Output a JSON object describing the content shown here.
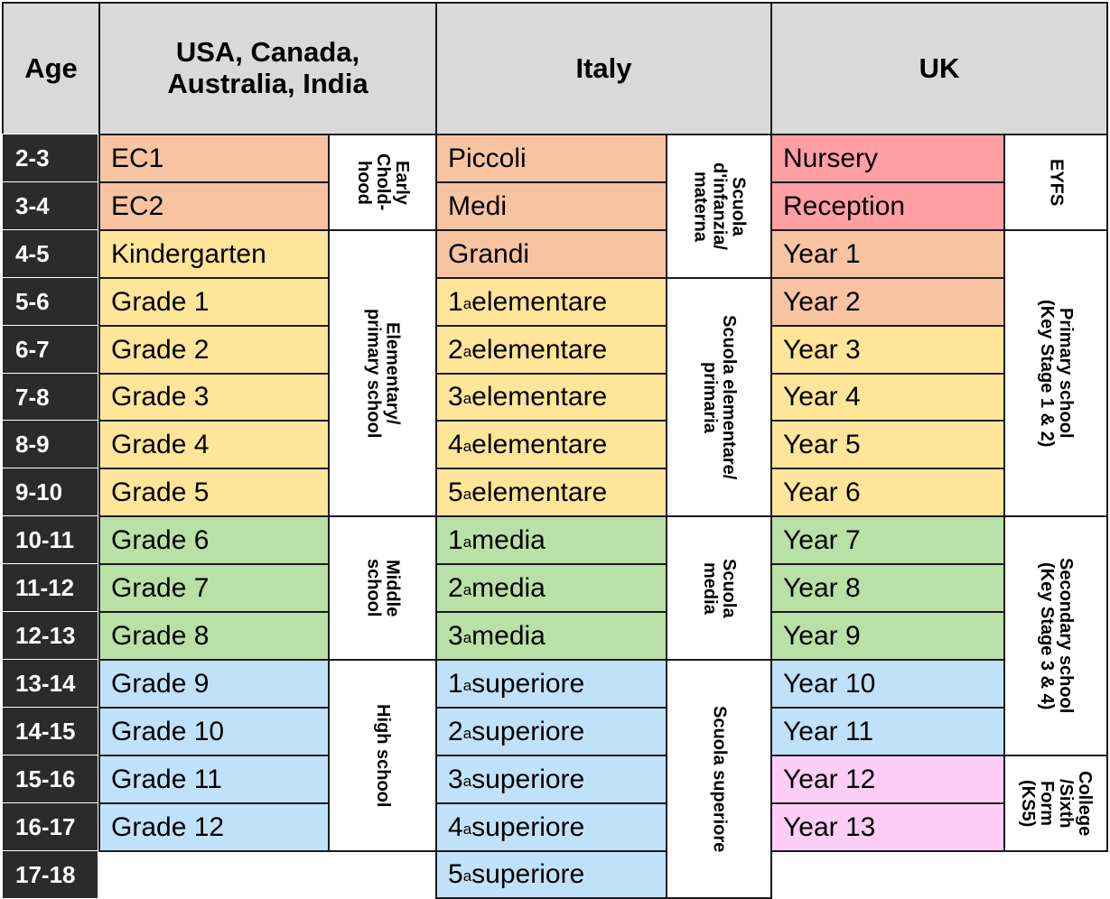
{
  "headers": {
    "age": "Age",
    "usa": "USA, Canada, Australia, India",
    "italy": "Italy",
    "uk": "UK"
  },
  "colors": {
    "early": "#f7c3a1",
    "primary": "#ffe599",
    "middle": "#b9e0a6",
    "high": "#c0e2f9",
    "eyfs": "#ff9fa4",
    "sixth_form": "#fccdf7",
    "header": "#d9d9d9",
    "age_column": "#2b2b2b"
  },
  "ages": [
    "2-3",
    "3-4",
    "4-5",
    "5-6",
    "6-7",
    "7-8",
    "8-9",
    "9-10",
    "10-11",
    "11-12",
    "12-13",
    "13-14",
    "14-15",
    "15-16",
    "16-17",
    "17-18"
  ],
  "usa": {
    "grades": [
      "EC1",
      "EC2",
      "Kindergarten",
      "Grade 1",
      "Grade 2",
      "Grade 3",
      "Grade 4",
      "Grade 5",
      "Grade 6",
      "Grade 7",
      "Grade 8",
      "Grade 9",
      "Grade 10",
      "Grade 11",
      "Grade 12"
    ],
    "groups": [
      "Early\nChold-\nhood",
      "Elementary/\nprimary school",
      "Middle\nschool",
      "High school"
    ]
  },
  "italy": {
    "grades": [
      "Piccoli",
      "Medi",
      "Grandi",
      "1ª elementare",
      "2ª elementare",
      "3ª elementare",
      "4ª elementare",
      "5ª elementare",
      "1ª media",
      "2ª media",
      "3ª media",
      "1ª superiore",
      "2ª superiore",
      "3ª superiore",
      "4ª superiore",
      "5ª superiore"
    ],
    "groups": [
      "Scuola\nd'infanzia/\nmaterna",
      "Scuola elementare/\nprimaria",
      "Scuola\nmedia",
      "Scuola superiore"
    ]
  },
  "uk": {
    "grades": [
      "Nursery",
      "Reception",
      "Year 1",
      "Year 2",
      "Year 3",
      "Year 4",
      "Year 5",
      "Year 6",
      "Year 7",
      "Year 8",
      "Year 9",
      "Year 10",
      "Year 11",
      "Year 12",
      "Year 13"
    ],
    "groups": [
      "EYFS",
      "Primary school\n(Key Stage 1 & 2)",
      "Secondary school\n(Key Stage 3 & 4)",
      "College\n/Sixth\nForm\n(KS5)"
    ]
  }
}
